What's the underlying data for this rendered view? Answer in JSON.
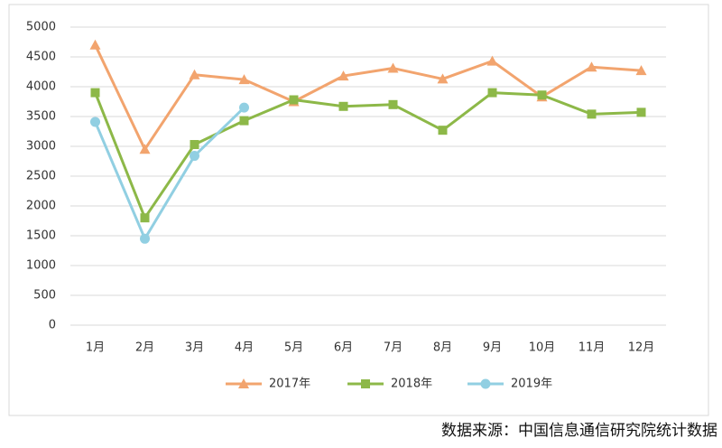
{
  "chart_data": {
    "type": "line",
    "categories": [
      "1月",
      "2月",
      "3月",
      "4月",
      "5月",
      "6月",
      "7月",
      "8月",
      "9月",
      "10月",
      "11月",
      "12月"
    ],
    "series": [
      {
        "name": "2017年",
        "color": "#f2a46e",
        "marker": "triangle",
        "values": [
          4700,
          2950,
          4200,
          4120,
          3750,
          4180,
          4310,
          4130,
          4430,
          3830,
          4330,
          4270
        ]
      },
      {
        "name": "2018年",
        "color": "#8db848",
        "marker": "square",
        "values": [
          3900,
          1800,
          3030,
          3430,
          3780,
          3670,
          3700,
          3270,
          3900,
          3860,
          3540,
          3570
        ]
      },
      {
        "name": "2019年",
        "color": "#91cfe2",
        "marker": "circle",
        "values": [
          3410,
          1450,
          2840,
          3650,
          null,
          null,
          null,
          null,
          null,
          null,
          null,
          null
        ]
      }
    ],
    "ylim": [
      0,
      5000
    ],
    "yticks": [
      0,
      500,
      1000,
      1500,
      2000,
      2500,
      3000,
      3500,
      4000,
      4500,
      5000
    ],
    "grid": true,
    "legend": "bottom",
    "source": "数据来源：中国信息通信研究院统计数据"
  }
}
